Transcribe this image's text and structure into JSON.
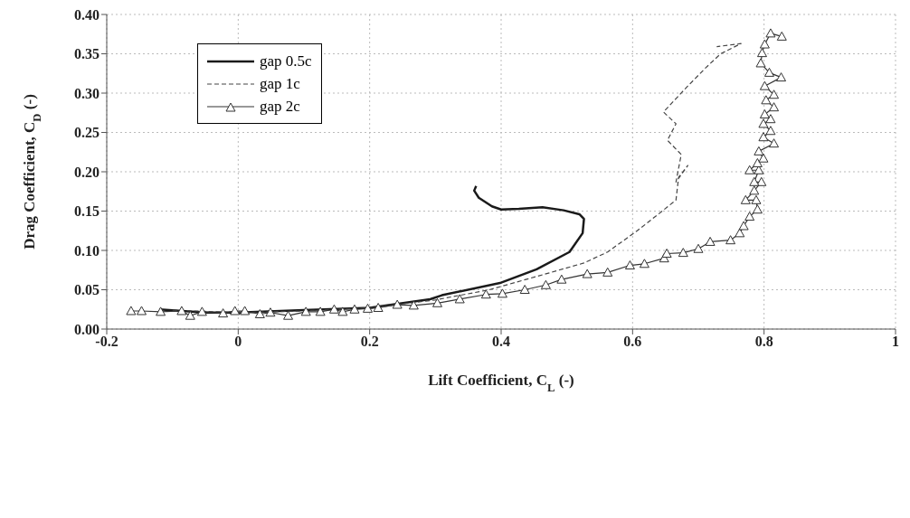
{
  "chart_data": {
    "type": "line",
    "xlabel": "Lift Coefficient, C$_{L}$ (-)",
    "ylabel": "Drag Coefficient, C$_{D}$ (-)",
    "xlim": [
      -0.2,
      1
    ],
    "xticks": [
      -0.2,
      0,
      0.2,
      0.4,
      0.6,
      0.8,
      1
    ],
    "ylim": [
      0,
      0.4
    ],
    "yticks": [
      {
        "value": 0,
        "label": "0.00"
      },
      {
        "value": 0.05,
        "label": "0.05"
      },
      {
        "value": 0.1,
        "label": "0.10"
      },
      {
        "value": 0.15,
        "label": "0.15"
      },
      {
        "value": 0.2,
        "label": "0.20"
      },
      {
        "value": 0.25,
        "label": "0.25"
      },
      {
        "value": 0.3,
        "label": "0.30"
      },
      {
        "value": 0.35,
        "label": "0.35"
      },
      {
        "value": 0.4,
        "label": "0.40"
      }
    ],
    "grid": true,
    "legend": "top left",
    "series": [
      {
        "name": "gap 0.5c",
        "color": "#1a1a1a",
        "line_style": "solid",
        "marker": "none",
        "x": [
          -0.12,
          -0.05,
          0,
          0.1,
          0.2,
          0.292,
          0.31,
          0.4,
          0.454,
          0.504,
          0.524,
          0.526,
          0.519,
          0.495,
          0.463,
          0.427,
          0.4,
          0.386,
          0.366,
          0.359,
          0.362
        ],
        "values": [
          0.025,
          0.021,
          0.021,
          0.024,
          0.027,
          0.038,
          0.043,
          0.059,
          0.076,
          0.098,
          0.122,
          0.14,
          0.146,
          0.151,
          0.155,
          0.153,
          0.152,
          0.156,
          0.167,
          0.176,
          0.182
        ]
      },
      {
        "name": "gap 1c",
        "color": "#444444",
        "line_style": "dashed",
        "marker": "none",
        "x": [
          -0.1,
          0,
          0.1,
          0.2,
          0.3,
          0.382,
          0.463,
          0.526,
          0.562,
          0.607,
          0.639,
          0.666,
          0.67,
          0.684,
          0.666,
          0.674,
          0.653,
          0.666,
          0.647,
          0.666,
          0.684,
          0.711,
          0.734,
          0.765,
          0.728
        ],
        "values": [
          0.024,
          0.021,
          0.023,
          0.027,
          0.037,
          0.05,
          0.069,
          0.084,
          0.098,
          0.125,
          0.146,
          0.164,
          0.193,
          0.208,
          0.187,
          0.222,
          0.24,
          0.261,
          0.276,
          0.293,
          0.309,
          0.332,
          0.35,
          0.363,
          0.359
        ]
      },
      {
        "name": "gap 2c",
        "color": "#333333",
        "line_style": "solid",
        "marker": "triangle",
        "x": [
          -0.163,
          -0.147,
          -0.118,
          -0.086,
          -0.073,
          -0.055,
          -0.023,
          -0.005,
          0.01,
          0.033,
          0.049,
          0.076,
          0.103,
          0.125,
          0.146,
          0.159,
          0.177,
          0.197,
          0.213,
          0.242,
          0.267,
          0.303,
          0.337,
          0.377,
          0.402,
          0.436,
          0.468,
          0.492,
          0.531,
          0.562,
          0.596,
          0.618,
          0.648,
          0.652,
          0.677,
          0.7,
          0.718,
          0.749,
          0.763,
          0.769,
          0.778,
          0.79,
          0.788,
          0.772,
          0.785,
          0.796,
          0.785,
          0.792,
          0.778,
          0.79,
          0.799,
          0.792,
          0.815,
          0.799,
          0.81,
          0.799,
          0.81,
          0.801,
          0.815,
          0.803,
          0.815,
          0.801,
          0.826,
          0.808,
          0.795,
          0.797,
          0.801,
          0.81,
          0.827
        ],
        "values": [
          0.023,
          0.023,
          0.022,
          0.023,
          0.017,
          0.022,
          0.02,
          0.023,
          0.023,
          0.019,
          0.021,
          0.017,
          0.022,
          0.022,
          0.025,
          0.022,
          0.025,
          0.026,
          0.027,
          0.031,
          0.03,
          0.033,
          0.038,
          0.044,
          0.045,
          0.05,
          0.056,
          0.063,
          0.07,
          0.072,
          0.081,
          0.083,
          0.09,
          0.096,
          0.097,
          0.102,
          0.111,
          0.113,
          0.122,
          0.131,
          0.143,
          0.152,
          0.164,
          0.164,
          0.176,
          0.187,
          0.187,
          0.202,
          0.202,
          0.211,
          0.217,
          0.226,
          0.236,
          0.244,
          0.252,
          0.261,
          0.267,
          0.273,
          0.282,
          0.291,
          0.298,
          0.309,
          0.32,
          0.326,
          0.338,
          0.351,
          0.362,
          0.376,
          0.372
        ]
      }
    ]
  }
}
